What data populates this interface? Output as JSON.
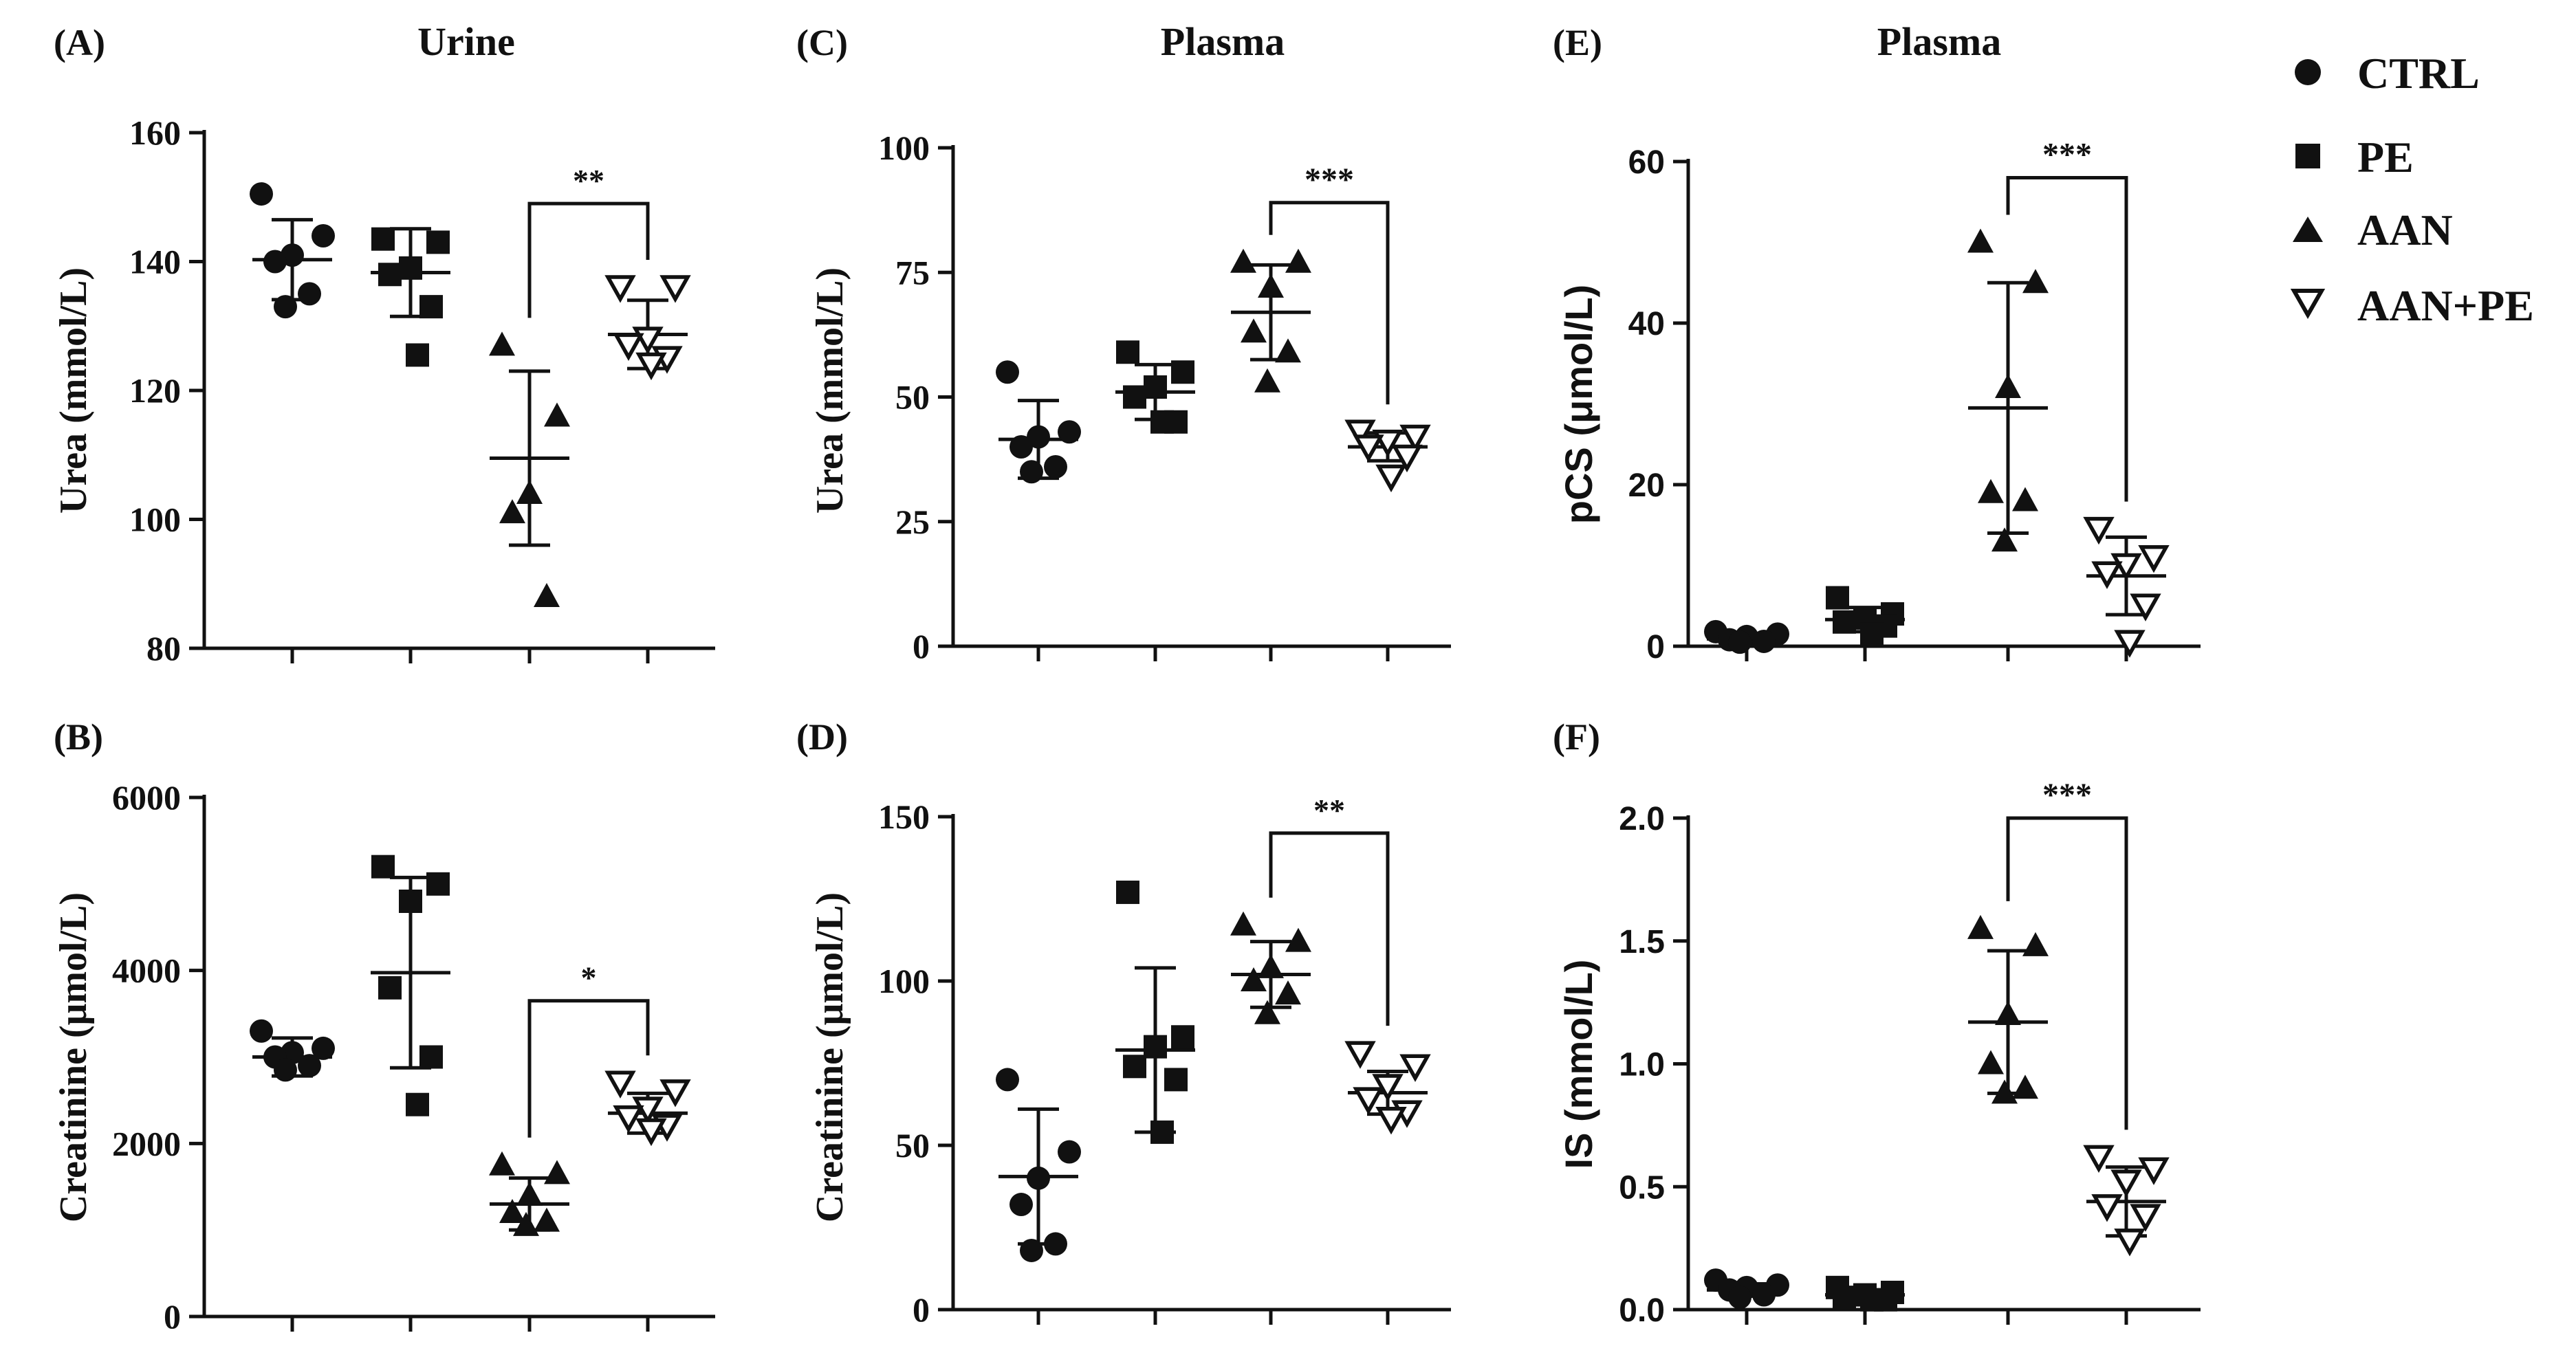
{
  "legend": {
    "placement": "top-right",
    "entries": [
      {
        "label": "CTRL",
        "marker": "filled-circle-icon"
      },
      {
        "label": "PE",
        "marker": "filled-square-icon"
      },
      {
        "label": "AAN",
        "marker": "filled-triangle-icon"
      },
      {
        "label": "AAN+PE",
        "marker": "open-inverted-triangle-icon"
      }
    ]
  },
  "column_titles": [
    "Urine",
    "Plasma",
    "Plasma"
  ],
  "chart_data": [
    {
      "type": "scatter",
      "panel": "(A)",
      "ylabel": "Urea (mmol/L)",
      "ylim": [
        80,
        160
      ],
      "yticks": [
        80,
        100,
        120,
        140,
        160
      ],
      "yticklabels": [
        "80",
        "100",
        "120",
        "140",
        "160"
      ],
      "ytick_font": "serif",
      "groups": [
        "CTRL",
        "PE",
        "AAN",
        "AAN+PE"
      ],
      "series": [
        {
          "name": "CTRL",
          "values": [
            150.5,
            144,
            141,
            140,
            135,
            133
          ],
          "mean": 140.3,
          "sd": 6.2
        },
        {
          "name": "PE",
          "values": [
            143.5,
            143,
            139,
            138,
            133,
            125.5
          ],
          "mean": 138.3,
          "sd": 6.8
        },
        {
          "name": "AAN",
          "values": [
            127,
            116,
            104,
            101,
            88
          ],
          "mean": 109.5,
          "sd": 13.5
        },
        {
          "name": "AAN+PE",
          "values": [
            136,
            136,
            128,
            127,
            125,
            124
          ],
          "mean": 128.7,
          "sd": 5.3
        }
      ],
      "significance": {
        "from": "AAN",
        "to": "AAN+PE",
        "label": "**",
        "y": 149
      }
    },
    {
      "type": "scatter",
      "panel": "(B)",
      "ylabel": "Creatinine (μmol/L)",
      "ylim": [
        0,
        6000
      ],
      "yticks": [
        0,
        2000,
        4000,
        6000
      ],
      "yticklabels": [
        "0",
        "2000",
        "4000",
        "6000"
      ],
      "ytick_font": "serif",
      "groups": [
        "CTRL",
        "PE",
        "AAN",
        "AAN+PE"
      ],
      "series": [
        {
          "name": "CTRL",
          "values": [
            3300,
            3100,
            3050,
            3000,
            2900,
            2850
          ],
          "mean": 3000,
          "sd": 220
        },
        {
          "name": "PE",
          "values": [
            5200,
            5000,
            4800,
            3800,
            3000,
            2450
          ],
          "mean": 3975,
          "sd": 1100
        },
        {
          "name": "AAN",
          "values": [
            1750,
            1650,
            1400,
            1200,
            1100,
            1050
          ],
          "mean": 1300,
          "sd": 300
        },
        {
          "name": "AAN+PE",
          "values": [
            2700,
            2600,
            2400,
            2300,
            2200,
            2150
          ],
          "mean": 2350,
          "sd": 230
        }
      ],
      "significance": {
        "from": "AAN",
        "to": "AAN+PE",
        "label": "*",
        "y": 3650
      }
    },
    {
      "type": "scatter",
      "panel": "(C)",
      "ylabel": "Urea (mmol/L)",
      "ylim": [
        0,
        100
      ],
      "yticks": [
        0,
        25,
        50,
        75,
        100
      ],
      "yticklabels": [
        "0",
        "25",
        "50",
        "75",
        "100"
      ],
      "ytick_font": "serif",
      "groups": [
        "CTRL",
        "PE",
        "AAN",
        "AAN+PE"
      ],
      "series": [
        {
          "name": "CTRL",
          "values": [
            55,
            43,
            42,
            40,
            36,
            35
          ],
          "mean": 41.5,
          "sd": 7.8
        },
        {
          "name": "PE",
          "values": [
            59,
            55,
            52,
            50,
            45,
            45
          ],
          "mean": 51,
          "sd": 5.5
        },
        {
          "name": "AAN",
          "values": [
            77,
            77,
            72,
            63,
            59,
            53
          ],
          "mean": 67,
          "sd": 9.5
        },
        {
          "name": "AAN+PE",
          "values": [
            43,
            42,
            41,
            40,
            38,
            34
          ],
          "mean": 40,
          "sd": 2.8
        }
      ],
      "significance": {
        "from": "AAN",
        "to": "AAN+PE",
        "label": "***",
        "y": 89
      }
    },
    {
      "type": "scatter",
      "panel": "(D)",
      "ylabel": "Creatinine (μmol/L)",
      "ylim": [
        0,
        150
      ],
      "yticks": [
        0,
        50,
        100,
        150
      ],
      "yticklabels": [
        "0",
        "50",
        "100",
        "150"
      ],
      "ytick_font": "serif",
      "groups": [
        "CTRL",
        "PE",
        "AAN",
        "AAN+PE"
      ],
      "series": [
        {
          "name": "CTRL",
          "values": [
            70,
            48,
            40,
            32,
            20,
            18
          ],
          "mean": 40.5,
          "sd": 20.5
        },
        {
          "name": "PE",
          "values": [
            127,
            83,
            80,
            74,
            70,
            54
          ],
          "mean": 79,
          "sd": 25
        },
        {
          "name": "AAN",
          "values": [
            117,
            112,
            104,
            100,
            96,
            90
          ],
          "mean": 102,
          "sd": 10
        },
        {
          "name": "AAN+PE",
          "values": [
            78,
            74,
            68,
            64,
            60,
            58
          ],
          "mean": 66,
          "sd": 6.5
        }
      ],
      "significance": {
        "from": "AAN",
        "to": "AAN+PE",
        "label": "**",
        "y": 145
      }
    },
    {
      "type": "scatter",
      "panel": "(E)",
      "ylabel": "pCS (μmol/L)",
      "ylim": [
        0,
        60
      ],
      "yticks": [
        0,
        20,
        40,
        60
      ],
      "yticklabels": [
        "0",
        "20",
        "40",
        "60"
      ],
      "ytick_font": "sans",
      "groups": [
        "CTRL",
        "PE",
        "AAN",
        "AAN+PE"
      ],
      "series": [
        {
          "name": "CTRL",
          "values": [
            1.8,
            1.5,
            1.2,
            0.8,
            0.6,
            0.5
          ],
          "mean": 0.9,
          "sd": 0.6
        },
        {
          "name": "PE",
          "values": [
            6,
            4,
            3.5,
            3,
            2.5,
            1.5
          ],
          "mean": 3.3,
          "sd": 1.5
        },
        {
          "name": "AAN",
          "values": [
            50,
            45,
            32,
            19,
            18,
            13
          ],
          "mean": 29.5,
          "sd": 15.5
        },
        {
          "name": "AAN+PE",
          "values": [
            14.5,
            11,
            10,
            9,
            5,
            0.5
          ],
          "mean": 8.7,
          "sd": 4.8
        }
      ],
      "significance": {
        "from": "AAN",
        "to": "AAN+PE",
        "label": "***",
        "y": 58
      }
    },
    {
      "type": "scatter",
      "panel": "(F)",
      "ylabel": "IS (mmol/L)",
      "ylim": [
        0,
        2.0
      ],
      "yticks": [
        0,
        0.5,
        1.0,
        1.5,
        2.0
      ],
      "yticklabels": [
        "0.0",
        "0.5",
        "1.0",
        "1.5",
        "2.0"
      ],
      "ytick_font": "sans",
      "groups": [
        "CTRL",
        "PE",
        "AAN",
        "AAN+PE"
      ],
      "series": [
        {
          "name": "CTRL",
          "values": [
            0.12,
            0.1,
            0.09,
            0.08,
            0.06,
            0.05
          ],
          "mean": 0.08,
          "sd": 0.025
        },
        {
          "name": "PE",
          "values": [
            0.09,
            0.07,
            0.06,
            0.05,
            0.04,
            0.04
          ],
          "mean": 0.06,
          "sd": 0.02
        },
        {
          "name": "AAN",
          "values": [
            1.55,
            1.48,
            1.2,
            1.0,
            0.9,
            0.88
          ],
          "mean": 1.17,
          "sd": 0.29
        },
        {
          "name": "AAN+PE",
          "values": [
            0.62,
            0.57,
            0.52,
            0.42,
            0.38,
            0.28
          ],
          "mean": 0.44,
          "sd": 0.14
        }
      ],
      "significance": {
        "from": "AAN",
        "to": "AAN+PE",
        "label": "***",
        "y": 2.0
      }
    }
  ]
}
